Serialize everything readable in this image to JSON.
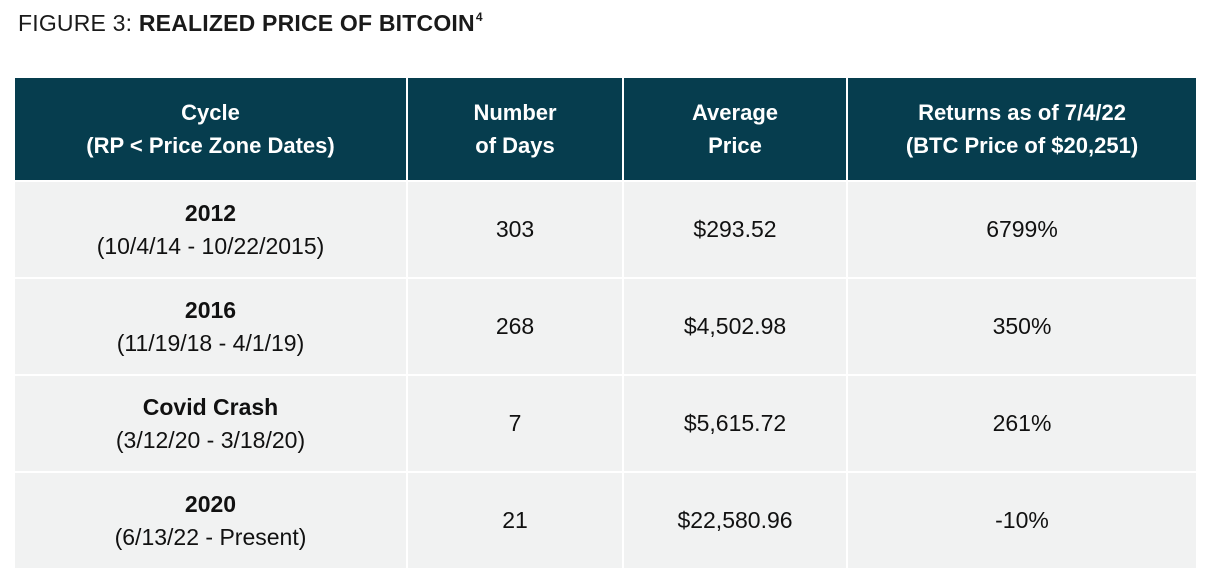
{
  "figure": {
    "label": "FIGURE 3:",
    "title": "REALIZED PRICE OF BITCOIN",
    "footnote": "4"
  },
  "table": {
    "headers": [
      [
        "Cycle",
        "(RP < Price Zone Dates)"
      ],
      [
        "Number",
        "of Days"
      ],
      [
        "Average",
        "Price"
      ],
      [
        "Returns as of 7/4/22",
        "(BTC Price of $20,251)"
      ]
    ],
    "rows": [
      {
        "cycle": "2012",
        "dates": "(10/4/14 - 10/22/2015)",
        "days": "303",
        "avg_price": "$293.52",
        "returns": "6799%"
      },
      {
        "cycle": "2016",
        "dates": "(11/19/18 - 4/1/19)",
        "days": "268",
        "avg_price": "$4,502.98",
        "returns": "350%"
      },
      {
        "cycle": "Covid Crash",
        "dates": "(3/12/20 - 3/18/20)",
        "days": "7",
        "avg_price": "$5,615.72",
        "returns": "261%"
      },
      {
        "cycle": "2020",
        "dates": "(6/13/22 - Present)",
        "days": "21",
        "avg_price": "$22,580.96",
        "returns": "-10%"
      }
    ]
  },
  "colors": {
    "header_bg": "#063d4e",
    "row_bg": "#f1f2f2"
  }
}
